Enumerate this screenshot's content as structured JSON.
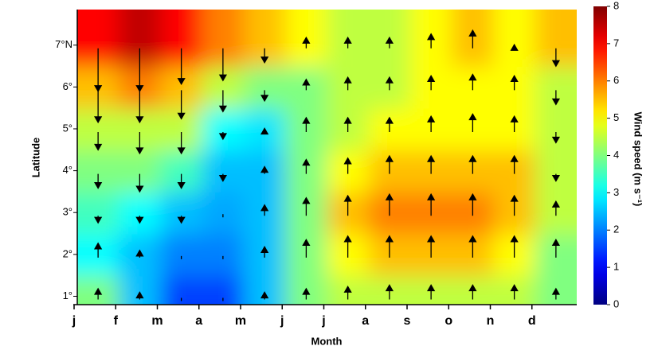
{
  "chart_data": {
    "type": "heatmap",
    "x_label": "Month",
    "y_label": "Latitude",
    "colorbar_label": "Wind speed (m s⁻¹)",
    "colormap": "jet",
    "categories": [
      "j",
      "f",
      "m",
      "a",
      "m",
      "j",
      "j",
      "a",
      "s",
      "o",
      "n",
      "d"
    ],
    "y": [
      1,
      2,
      3,
      4,
      5,
      6,
      7
    ],
    "ylim": [
      0.8,
      7.85
    ],
    "yticks": [
      {
        "value": 1,
        "label": "1°"
      },
      {
        "value": 2,
        "label": "2°"
      },
      {
        "value": 3,
        "label": "3°"
      },
      {
        "value": 4,
        "label": "4°"
      },
      {
        "value": 5,
        "label": "5°"
      },
      {
        "value": 6,
        "label": "6°"
      },
      {
        "value": 7,
        "label": "7°N"
      }
    ],
    "values": [
      [
        4,
        2.5,
        1.5,
        1.5,
        2.5,
        4,
        4.5,
        4.5,
        4.5,
        4.5,
        4.5,
        4
      ],
      [
        3,
        2.5,
        2,
        2,
        2.5,
        4,
        5,
        5.5,
        5.5,
        5.5,
        5,
        4
      ],
      [
        3.5,
        3,
        2.5,
        2.3,
        2.5,
        4,
        5.5,
        6,
        6,
        6,
        5.5,
        4.5
      ],
      [
        4,
        4,
        3.5,
        2.5,
        2.5,
        4,
        5,
        5.5,
        5.5,
        5.5,
        5.5,
        4.5
      ],
      [
        4.5,
        4.5,
        4.5,
        3,
        2.8,
        4,
        4.5,
        5,
        5,
        5,
        5,
        4.5
      ],
      [
        5.5,
        6,
        5.5,
        4.5,
        4,
        4,
        4.5,
        4.5,
        5,
        5,
        5,
        4.5
      ],
      [
        7,
        7.5,
        7,
        6,
        5.5,
        5,
        4.5,
        4.5,
        5,
        5.5,
        5,
        5.5
      ]
    ],
    "v_values": [
      [
        1.5,
        1,
        0,
        0,
        1,
        1.5,
        1.8,
        2,
        2,
        2,
        2,
        1.5
      ],
      [
        2,
        1,
        0,
        0,
        1.5,
        2.5,
        3,
        3,
        3,
        3,
        3,
        2.5
      ],
      [
        -1,
        -1,
        -1,
        0,
        1.5,
        2.5,
        2.8,
        3,
        3,
        3,
        2.8,
        2
      ],
      [
        -2,
        -2.5,
        -2,
        -1,
        1,
        2,
        2.2,
        2.5,
        2.5,
        2.5,
        2.5,
        -1
      ],
      [
        -2.5,
        -3,
        -3,
        -1,
        0.5,
        2,
        2,
        2,
        2.2,
        2.5,
        2.2,
        -1.5
      ],
      [
        -4.5,
        -4.5,
        -4,
        -3,
        -1.5,
        1.5,
        1.8,
        1.8,
        2,
        2.2,
        2,
        -2
      ],
      [
        -6,
        -6,
        -5,
        -4.5,
        -2,
        1.5,
        1.5,
        1.5,
        2,
        2.5,
        0.5,
        -2.5
      ]
    ],
    "clim": [
      0,
      8
    ],
    "cticks": [
      0,
      1,
      2,
      3,
      4,
      5,
      6,
      7,
      8
    ]
  }
}
